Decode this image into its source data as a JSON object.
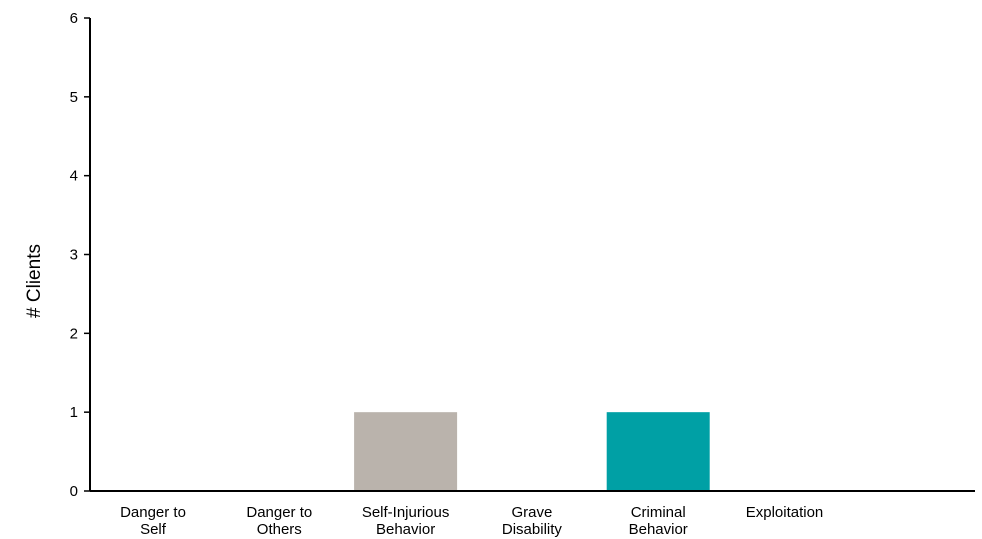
{
  "chart_data": {
    "type": "bar",
    "title": "",
    "xlabel": "",
    "ylabel": "# Clients",
    "ylim": [
      0,
      6
    ],
    "yticks": [
      0,
      1,
      2,
      3,
      4,
      5,
      6
    ],
    "grid": false,
    "categories": [
      [
        "Danger to",
        "Self"
      ],
      [
        "Danger to",
        "Others"
      ],
      [
        "Self-Injurious",
        "Behavior"
      ],
      [
        "Grave",
        "Disability"
      ],
      [
        "Criminal",
        "Behavior"
      ],
      [
        "Exploitation"
      ]
    ],
    "values": [
      0,
      0,
      1,
      0,
      1,
      0
    ],
    "colors": [
      "#bab3ac",
      "#bab3ac",
      "#bab3ac",
      "#bab3ac",
      "#00a0a5",
      "#bab3ac"
    ]
  }
}
